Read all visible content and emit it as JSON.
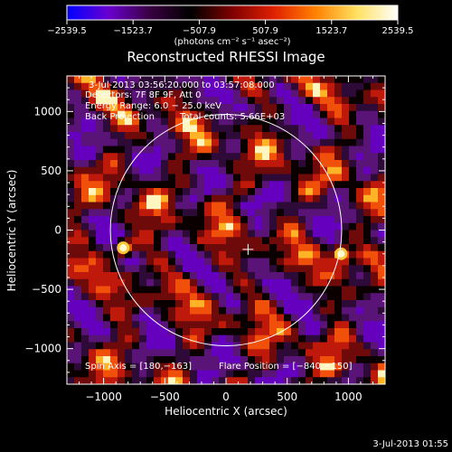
{
  "chart_data": {
    "type": "heatmap",
    "title": "Reconstructed RHESSI Image",
    "xlabel": "Heliocentric X (arcsec)",
    "ylabel": "Heliocentric Y (arcsec)",
    "xlim": [
      -1300,
      1300
    ],
    "ylim": [
      -1300,
      1300
    ],
    "x_ticks": [
      -1000,
      -500,
      0,
      500,
      1000
    ],
    "y_ticks": [
      -1000,
      -500,
      0,
      500,
      1000
    ],
    "x_tick_labels": [
      "−1000",
      "−500",
      "0",
      "500",
      "1000"
    ],
    "y_tick_labels": [
      "−1000",
      "−500",
      "0",
      "500",
      "1000"
    ],
    "colorbar": {
      "range": [
        -2539.5,
        2539.5
      ],
      "tick_labels": [
        "−2539.5",
        "−1523.7",
        "−507.9",
        "507.9",
        "1523.7",
        "2539.5"
      ],
      "unit_label": "(photons cm⁻² s⁻¹ asec⁻²)",
      "colors": [
        "#0000ff",
        "#6a00d0",
        "#3a0040",
        "#000000",
        "#800000",
        "#e02000",
        "#ff8000",
        "#ffe060",
        "#ffffff"
      ]
    },
    "annotations": {
      "time_range": "3-Jul-2013 03:56:20.000 to 03:57:08.000",
      "detectors": "Detectors: 7F 8F 9F, Att 0",
      "energy_range": "Energy Range: 6.0 − 25.0 keV",
      "method": "Back Projection",
      "total_counts": "Total counts: 5.66E+03",
      "spin_axis": "Spin Axis = [180,−163]",
      "flare_position": "Flare Position = [−840,−150]"
    },
    "solar_disk_radius": 945,
    "sun_center": [
      0,
      0
    ],
    "cross_marker": [
      180,
      -163
    ],
    "bright_sources": [
      {
        "x": -840,
        "y": -150,
        "intensity": 1.0
      },
      {
        "x": 940,
        "y": -200,
        "intensity": 0.95
      }
    ],
    "footer_timestamp": "3-Jul-2013 01:55"
  },
  "colors": {
    "background": "#000000",
    "foreground": "#ffffff"
  }
}
